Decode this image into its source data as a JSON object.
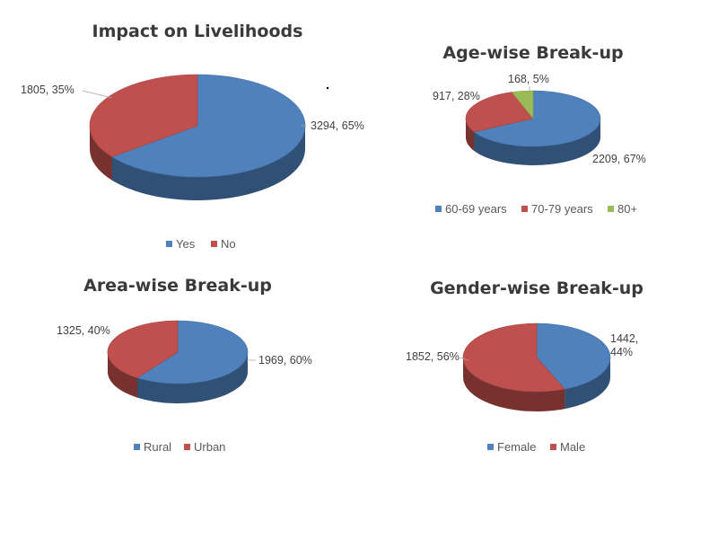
{
  "chart_data": [
    {
      "type": "pie",
      "title": "Impact on Livelihoods",
      "slices": [
        {
          "name": "Yes",
          "value": 3294,
          "percent": "65%",
          "color": "#4f81bd"
        },
        {
          "name": "No",
          "value": 1805,
          "percent": "35%",
          "color": "#c0504d"
        }
      ],
      "legend": [
        "Yes",
        "No"
      ],
      "legend_position": "bottom"
    },
    {
      "type": "pie",
      "title": "Age-wise Break-up",
      "slices": [
        {
          "name": "60-69 years",
          "value": 2209,
          "percent": "67%",
          "color": "#4f81bd"
        },
        {
          "name": "70-79 years",
          "value": 917,
          "percent": "28%",
          "color": "#c0504d"
        },
        {
          "name": "80+",
          "value": 168,
          "percent": "5%",
          "color": "#9bbb59"
        }
      ],
      "legend": [
        "60-69 years",
        "70-79 years",
        "80+"
      ],
      "legend_position": "bottom"
    },
    {
      "type": "pie",
      "title": "Area-wise Break-up",
      "slices": [
        {
          "name": "Rural",
          "value": 1969,
          "percent": "60%",
          "color": "#4f81bd"
        },
        {
          "name": "Urban",
          "value": 1325,
          "percent": "40%",
          "color": "#c0504d"
        }
      ],
      "legend": [
        "Rural",
        "Urban"
      ],
      "legend_position": "bottom"
    },
    {
      "type": "pie",
      "title": "Gender-wise Break-up",
      "slices": [
        {
          "name": "Female",
          "value": 1442,
          "percent": "44%",
          "color": "#4f81bd"
        },
        {
          "name": "Male",
          "value": 1852,
          "percent": "56%",
          "color": "#c0504d"
        }
      ],
      "legend": [
        "Female",
        "Male"
      ],
      "legend_position": "bottom"
    }
  ]
}
